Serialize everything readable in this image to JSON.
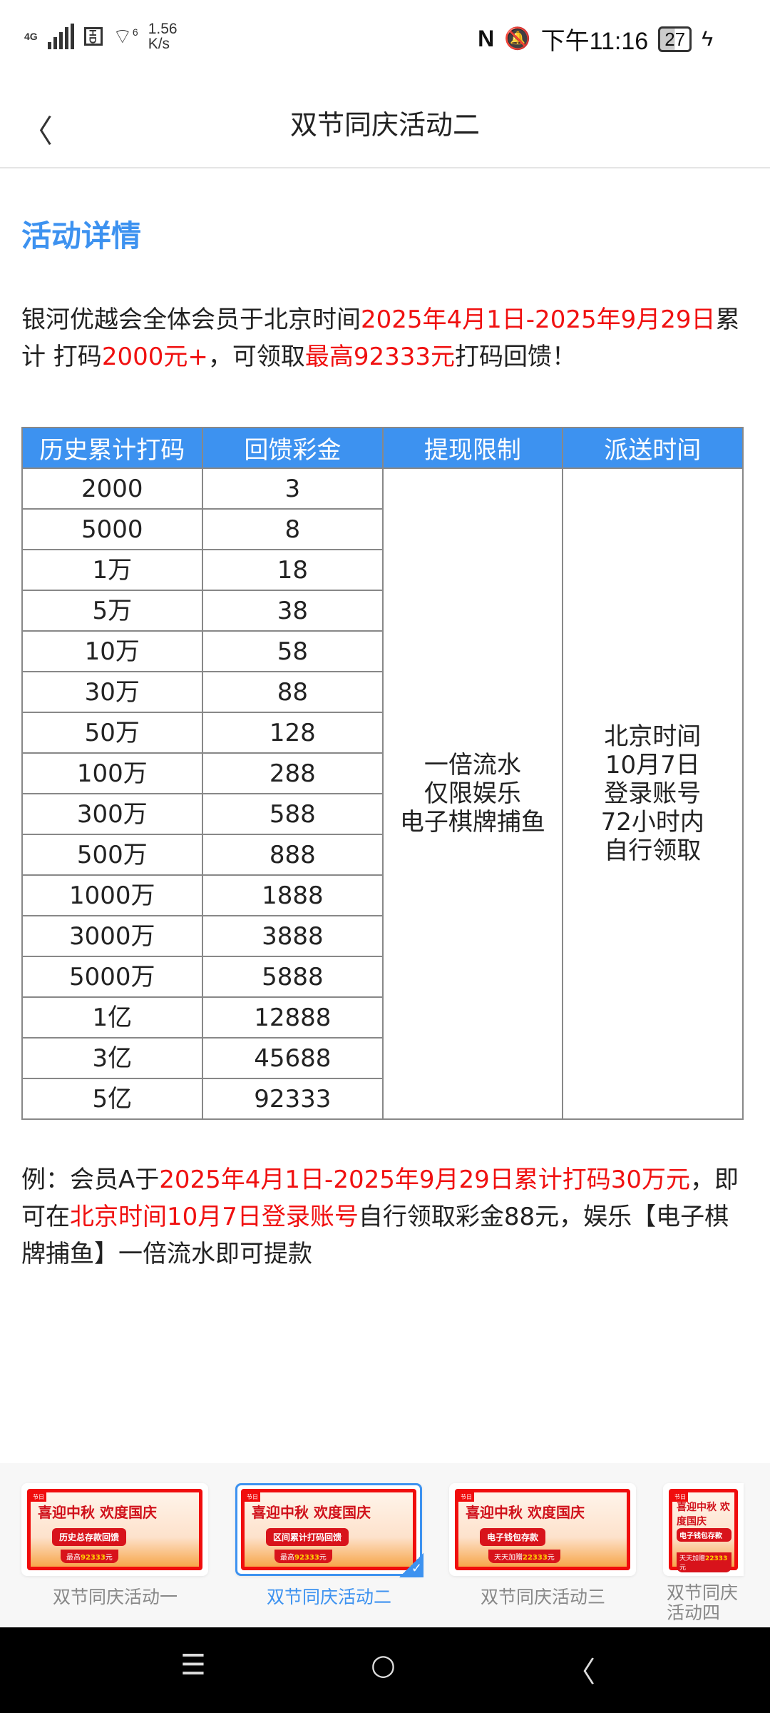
{
  "status_bar": {
    "network": "4G",
    "hd": "HD",
    "wifi": "6",
    "speed_value": "1.56",
    "speed_unit": "K/s",
    "time": "下午11:16",
    "battery": "27",
    "battery_level": 27
  },
  "header": {
    "title": "双节同庆活动二"
  },
  "section_title": "活动详情",
  "intro": {
    "p1": "银河优越会全体会员于北京时间",
    "p2": "2025年4月1日-2025年9月29日",
    "p3": "累计 打码",
    "p4": "2000元+",
    "p5": "，可领取",
    "p6": "最高92333元",
    "p7": "打码回馈！"
  },
  "table": {
    "headers": [
      "历史累计打码",
      "回馈彩金",
      "提现限制",
      "派送时间"
    ],
    "rows": [
      [
        "2000",
        "3"
      ],
      [
        "5000",
        "8"
      ],
      [
        "1万",
        "18"
      ],
      [
        "5万",
        "38"
      ],
      [
        "10万",
        "58"
      ],
      [
        "30万",
        "88"
      ],
      [
        "50万",
        "128"
      ],
      [
        "100万",
        "288"
      ],
      [
        "300万",
        "588"
      ],
      [
        "500万",
        "888"
      ],
      [
        "1000万",
        "1888"
      ],
      [
        "3000万",
        "3888"
      ],
      [
        "5000万",
        "5888"
      ],
      [
        "1亿",
        "12888"
      ],
      [
        "3亿",
        "45688"
      ],
      [
        "5亿",
        "92333"
      ]
    ],
    "limit": [
      "一倍流水",
      "仅限娱乐",
      "电子棋牌捕鱼"
    ],
    "time": [
      "北京时间",
      "10月7日",
      "登录账号",
      "72小时内",
      "自行领取"
    ]
  },
  "example": {
    "p1": "例：会员A于",
    "p2": "2025年4月1日-2025年9月29日累计打码30万元",
    "p3": "，即可在",
    "p4": "北京时间10月7日登录账号",
    "p5": "自行领取彩金88元，娱乐【电子棋牌捕鱼】一倍流水即可提款"
  },
  "carousel": [
    {
      "label": "双节同庆活动一",
      "banner_title": "喜迎中秋 欢度国庆",
      "banner_pill": "历史总存款回馈",
      "banner_sub_prefix": "最高",
      "banner_sub_value": "92333",
      "banner_sub_suffix": "元",
      "selected": false
    },
    {
      "label": "双节同庆活动二",
      "banner_title": "喜迎中秋 欢度国庆",
      "banner_pill": "区间累计打码回馈",
      "banner_sub_prefix": "最高",
      "banner_sub_value": "92333",
      "banner_sub_suffix": "元",
      "selected": true
    },
    {
      "label": "双节同庆活动三",
      "banner_title": "喜迎中秋 欢度国庆",
      "banner_pill": "电子钱包存款",
      "banner_sub_prefix": "天天加赠",
      "banner_sub_value": "22333",
      "banner_sub_suffix": "元",
      "selected": false
    },
    {
      "label": "双节同庆活动四",
      "banner_title": "喜迎中秋 欢度国庆",
      "banner_pill": "电子钱包存款",
      "banner_sub_prefix": "天天加赠",
      "banner_sub_value": "22333",
      "banner_sub_suffix": "元",
      "selected": false
    }
  ],
  "colors": {
    "accent": "#3d92f0",
    "highlight": "#f01010"
  }
}
